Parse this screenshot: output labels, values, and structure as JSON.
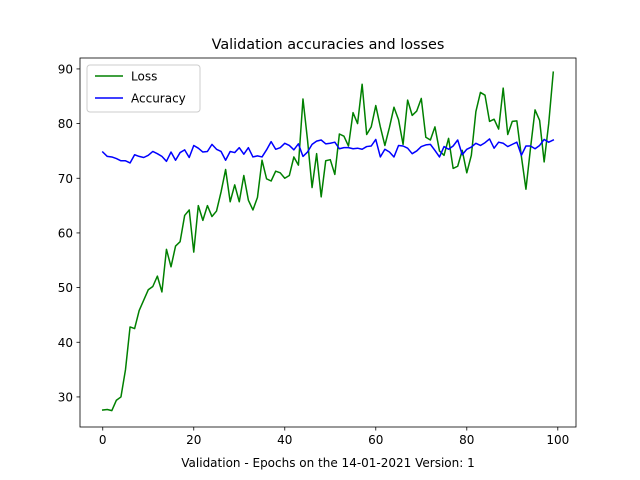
{
  "chart_data": {
    "type": "line",
    "title": "Validation accuracies and losses",
    "xlabel": "Validation - Epochs on the 14-01-2021 Version: 1",
    "ylabel": "",
    "xlim": [
      -5.0,
      104.0
    ],
    "ylim": [
      24.5,
      92.0
    ],
    "xticks": [
      0,
      20,
      40,
      60,
      80,
      100
    ],
    "yticks": [
      30,
      40,
      50,
      60,
      70,
      80,
      90
    ],
    "grid": false,
    "legend_position": "top-left",
    "x": [
      0,
      1,
      2,
      3,
      4,
      5,
      6,
      7,
      8,
      9,
      10,
      11,
      12,
      13,
      14,
      15,
      16,
      17,
      18,
      19,
      20,
      21,
      22,
      23,
      24,
      25,
      26,
      27,
      28,
      29,
      30,
      31,
      32,
      33,
      34,
      35,
      36,
      37,
      38,
      39,
      40,
      41,
      42,
      43,
      44,
      45,
      46,
      47,
      48,
      49,
      50,
      51,
      52,
      53,
      54,
      55,
      56,
      57,
      58,
      59,
      60,
      61,
      62,
      63,
      64,
      65,
      66,
      67,
      68,
      69,
      70,
      71,
      72,
      73,
      74,
      75,
      76,
      77,
      78,
      79,
      80,
      81,
      82,
      83,
      84,
      85,
      86,
      87,
      88,
      89,
      90,
      91,
      92,
      93,
      94,
      95,
      96,
      97,
      98,
      99
    ],
    "series": [
      {
        "name": "Loss",
        "color": "#008000",
        "values": [
          27.6,
          27.7,
          27.5,
          29.4,
          30.0,
          35.0,
          42.8,
          42.5,
          45.8,
          47.7,
          49.6,
          50.2,
          52.1,
          49.2,
          57.0,
          53.8,
          57.6,
          58.4,
          63.2,
          64.2,
          56.5,
          65.0,
          62.3,
          65.0,
          63.0,
          64.0,
          67.5,
          71.6,
          65.7,
          68.8,
          65.7,
          70.5,
          66.0,
          64.2,
          66.5,
          73.3,
          69.9,
          69.5,
          71.3,
          71.0,
          70.0,
          70.5,
          73.9,
          72.4,
          84.5,
          77.0,
          68.3,
          74.5,
          66.6,
          73.2,
          73.4,
          70.7,
          78.1,
          77.7,
          75.9,
          82.0,
          80.0,
          87.2,
          78.0,
          79.4,
          83.3,
          79.4,
          76.0,
          79.3,
          83.0,
          80.7,
          76.2,
          84.3,
          81.5,
          82.3,
          84.6,
          77.5,
          77.0,
          79.4,
          75.0,
          74.2,
          77.3,
          71.8,
          72.2,
          75.1,
          71.0,
          74.2,
          82.2,
          85.7,
          85.2,
          80.4,
          80.8,
          79.0,
          86.5,
          78.0,
          80.4,
          80.5,
          74.0,
          68.0,
          75.5,
          82.5,
          80.6,
          73.0,
          80.0,
          89.4
        ]
      },
      {
        "name": "Accuracy",
        "color": "#0000ff",
        "values": [
          74.8,
          74.0,
          73.9,
          73.6,
          73.2,
          73.2,
          72.8,
          74.3,
          74.0,
          73.8,
          74.2,
          74.9,
          74.5,
          74.0,
          73.1,
          74.8,
          73.3,
          74.7,
          75.2,
          73.8,
          76.0,
          75.5,
          74.8,
          74.9,
          76.2,
          75.3,
          74.9,
          73.3,
          74.9,
          74.7,
          75.6,
          74.4,
          75.6,
          73.9,
          74.1,
          73.9,
          75.2,
          76.7,
          75.3,
          75.6,
          76.4,
          76.0,
          75.2,
          76.3,
          74.0,
          74.8,
          76.2,
          76.8,
          77.0,
          76.3,
          76.4,
          76.6,
          75.4,
          75.6,
          75.6,
          75.4,
          75.5,
          75.3,
          75.8,
          75.9,
          77.1,
          73.9,
          75.3,
          74.8,
          73.9,
          76.0,
          75.9,
          75.5,
          74.5,
          75.0,
          75.8,
          76.1,
          76.2,
          75.1,
          73.9,
          75.8,
          75.3,
          75.9,
          77.0,
          74.3,
          75.3,
          75.7,
          76.4,
          76.0,
          76.5,
          77.2,
          75.5,
          76.6,
          76.4,
          75.8,
          76.2,
          76.6,
          74.2,
          75.9,
          75.9,
          75.4,
          76.0,
          77.1,
          76.6,
          77.0
        ]
      }
    ]
  }
}
